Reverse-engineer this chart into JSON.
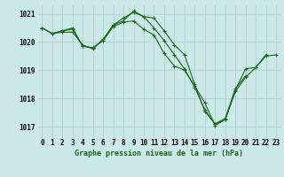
{
  "xlabel": "Graphe pression niveau de la mer (hPa)",
  "x_ticks": [
    0,
    1,
    2,
    3,
    4,
    5,
    6,
    7,
    8,
    9,
    10,
    11,
    12,
    13,
    14,
    15,
    16,
    17,
    18,
    19,
    20,
    21,
    22,
    23
  ],
  "ylim": [
    1016.6,
    1021.3
  ],
  "yticks": [
    1017,
    1018,
    1019,
    1020,
    1021
  ],
  "background_color": "#cce8e8",
  "grid_color": "#aacece",
  "line_color": "#1a6b1a",
  "lines": [
    [
      1020.5,
      1020.3,
      1020.4,
      1020.45,
      1019.85,
      1019.8,
      1020.05,
      1020.55,
      1020.7,
      1020.75,
      1020.45,
      1020.25,
      1019.6,
      1019.15,
      1019.0,
      1018.45,
      1017.85,
      1017.05,
      1017.25,
      1018.3,
      1019.05,
      1019.1,
      1019.55,
      null
    ],
    [
      1020.5,
      1020.3,
      1020.4,
      1020.5,
      1019.85,
      1019.8,
      1020.05,
      1020.6,
      1020.85,
      1021.05,
      1020.9,
      1020.85,
      1020.4,
      1019.9,
      1019.55,
      1018.5,
      1017.55,
      1017.1,
      1017.3,
      1018.35,
      1018.8,
      null,
      null,
      null
    ],
    [
      1020.5,
      1020.3,
      1020.35,
      1020.35,
      1019.9,
      1019.75,
      1020.1,
      1020.6,
      1020.75,
      1021.1,
      1020.9,
      1020.5,
      1020.05,
      1019.55,
      1019.05,
      1018.4,
      1017.6,
      1017.1,
      1017.25,
      1018.25,
      1018.75,
      1019.1,
      1019.5,
      1019.55
    ]
  ],
  "marker": "+",
  "markersize": 3,
  "linewidth": 0.8,
  "tick_fontsize": 5.5,
  "xlabel_fontsize": 6.0
}
